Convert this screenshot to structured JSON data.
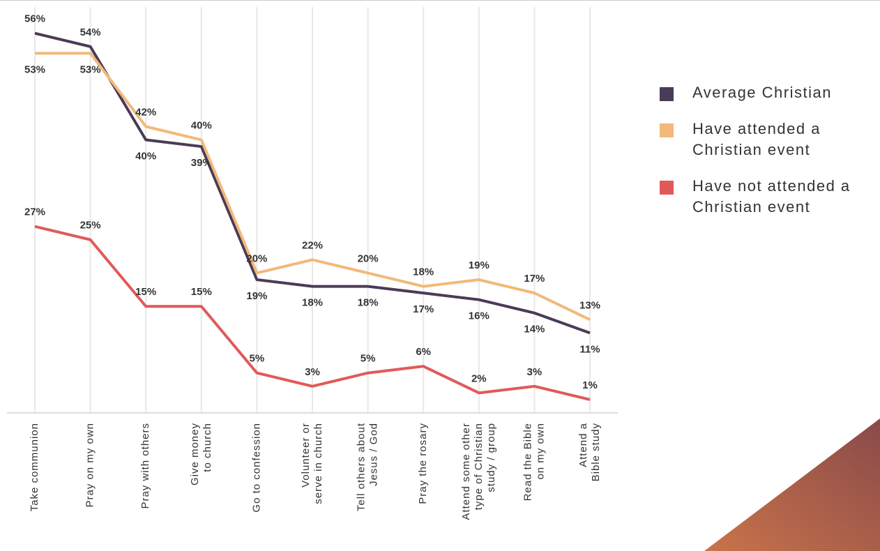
{
  "chart_data": {
    "type": "line",
    "categories": [
      "Take communion",
      "Pray on my own",
      "Pray with others",
      "Give money\nto church",
      "Go to confession",
      "Volunteer or\nserve in church",
      "Tell others about\nJesus / God",
      "Pray the rosary",
      "Attend some other\ntype of Christian\nstudy / group",
      "Read the Bible\non my own",
      "Attend a\nBible study"
    ],
    "series": [
      {
        "name": "Average Christian",
        "color": "#4a3b57",
        "values": [
          56,
          54,
          40,
          39,
          19,
          18,
          18,
          17,
          16,
          14,
          11
        ],
        "value_labels": [
          "56%",
          "54%",
          "40%",
          "39%",
          "19%",
          "18%",
          "18%",
          "17%",
          "16%",
          "14%",
          "11%"
        ]
      },
      {
        "name": "Have attended a Christian event",
        "color": "#f2b97a",
        "values": [
          53,
          53,
          42,
          40,
          20,
          22,
          20,
          18,
          19,
          17,
          13
        ],
        "value_labels": [
          "53%",
          "53%",
          "42%",
          "40%",
          "20%",
          "22%",
          "20%",
          "18%",
          "19%",
          "17%",
          "13%"
        ]
      },
      {
        "name": "Have not attended a Christian event",
        "color": "#e05a5a",
        "values": [
          27,
          25,
          15,
          15,
          5,
          3,
          5,
          6,
          2,
          3,
          1
        ],
        "value_labels": [
          "27%",
          "25%",
          "15%",
          "15%",
          "5%",
          "3%",
          "5%",
          "6%",
          "2%",
          "3%",
          "1%"
        ]
      }
    ],
    "ylim": [
      -1,
      61
    ],
    "grid": true
  }
}
